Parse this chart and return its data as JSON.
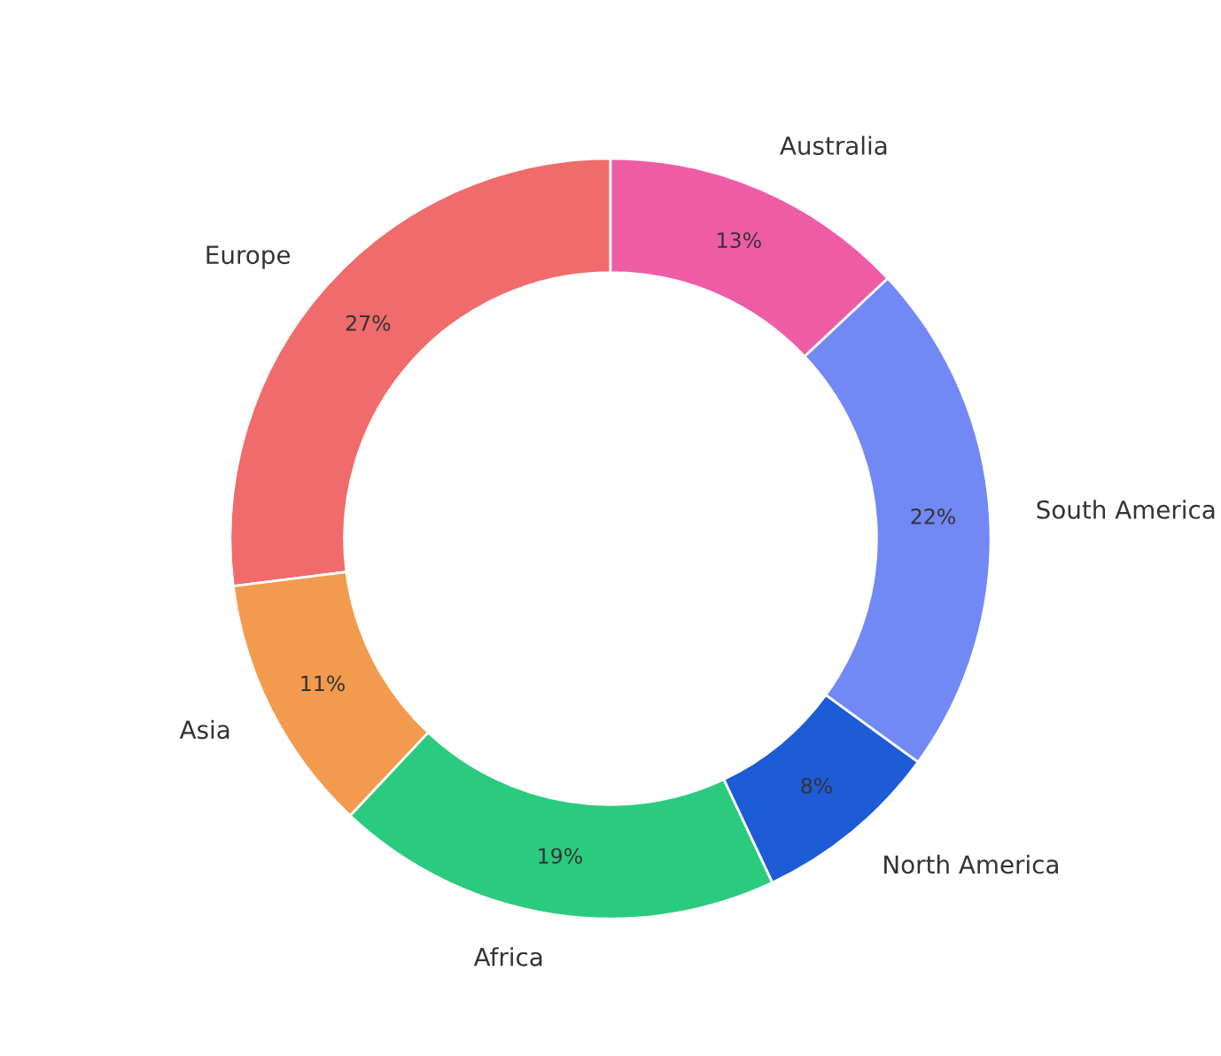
{
  "chart_data": {
    "type": "donut",
    "categories": [
      "Europe",
      "Asia",
      "Africa",
      "North America",
      "South America",
      "Australia"
    ],
    "values": [
      27,
      11,
      19,
      8,
      22,
      13
    ],
    "colors": [
      "#f06b6b",
      "#f29b4e",
      "#2acb7e",
      "#1e5bd6",
      "#7288f5",
      "#ef5ca6"
    ],
    "value_labels": [
      "27%",
      "11%",
      "19%",
      "8%",
      "22%",
      "13%"
    ]
  }
}
